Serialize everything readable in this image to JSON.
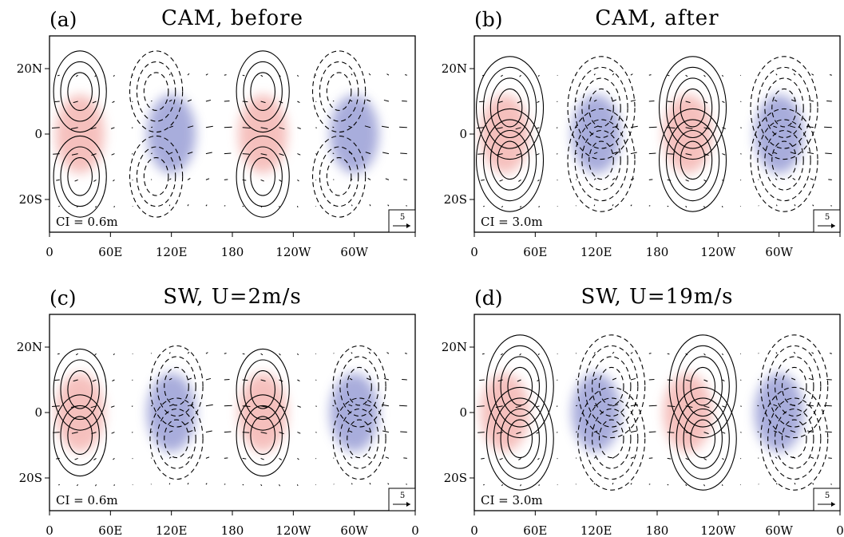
{
  "figure": {
    "panels": [
      {
        "tag": "(a)",
        "title": "CAM, before",
        "ci_label": "CI = 0.6m",
        "ref_vector": "5",
        "x_tick_labels": [
          "0",
          "60E",
          "120E",
          "180",
          "120W",
          "60W",
          ""
        ],
        "y_tick_labels": [
          "20N",
          "0",
          "20S"
        ]
      },
      {
        "tag": "(b)",
        "title": "CAM, after",
        "ci_label": "CI = 3.0m",
        "ref_vector": "5",
        "x_tick_labels": [
          "0",
          "60E",
          "120E",
          "180",
          "120W",
          "60W",
          ""
        ],
        "y_tick_labels": [
          "20N",
          "0",
          "20S"
        ]
      },
      {
        "tag": "(c)",
        "title": "SW, U=2m/s",
        "ci_label": "CI = 0.6m",
        "ref_vector": "5",
        "x_tick_labels": [
          "0",
          "60E",
          "120E",
          "180",
          "120W",
          "60W",
          "0"
        ],
        "y_tick_labels": [
          "20N",
          "0",
          "20S"
        ]
      },
      {
        "tag": "(d)",
        "title": "SW, U=19m/s",
        "ci_label": "CI = 3.0m",
        "ref_vector": "5",
        "x_tick_labels": [
          "0",
          "60E",
          "120E",
          "180",
          "120W",
          "60W",
          "0"
        ],
        "y_tick_labels": [
          "20N",
          "0",
          "20S"
        ]
      }
    ]
  },
  "chart_data": [
    {
      "type": "heatmap",
      "panel": "a",
      "title": "CAM, before",
      "xlim": [
        0,
        360
      ],
      "ylim": [
        -30,
        30
      ],
      "heating_positive_centers_lon": [
        30,
        210
      ],
      "heating_negative_centers_lon": [
        120,
        300
      ],
      "heating_center_lat": 0,
      "contour_centers_positive": [
        [
          30,
          13
        ],
        [
          30,
          -13
        ],
        [
          210,
          13
        ],
        [
          210,
          -13
        ]
      ],
      "contour_centers_negative": [
        [
          105,
          13
        ],
        [
          105,
          -13
        ],
        [
          285,
          13
        ],
        [
          285,
          -13
        ]
      ],
      "contour_levels": 3,
      "contour_interval_m": 0.6,
      "reference_vector_mps": 5,
      "colors": {
        "positive": "#f4b6b2",
        "negative": "#9a9fd6"
      }
    },
    {
      "type": "heatmap",
      "panel": "b",
      "title": "CAM, after",
      "xlim": [
        0,
        360
      ],
      "ylim": [
        -30,
        30
      ],
      "heating_positive_centers_lon": [
        30,
        210
      ],
      "heating_negative_centers_lon": [
        120,
        300
      ],
      "heating_center_lat": 0,
      "contour_centers_positive": [
        [
          35,
          8
        ],
        [
          35,
          -8
        ],
        [
          215,
          8
        ],
        [
          215,
          -8
        ]
      ],
      "contour_centers_negative": [
        [
          125,
          8
        ],
        [
          125,
          -8
        ],
        [
          305,
          8
        ],
        [
          305,
          -8
        ]
      ],
      "contour_levels": 4,
      "contour_interval_m": 3.0,
      "reference_vector_mps": 5,
      "colors": {
        "positive": "#f4b6b2",
        "negative": "#9a9fd6"
      }
    },
    {
      "type": "heatmap",
      "panel": "c",
      "title": "SW, U=2m/s",
      "xlim": [
        0,
        360
      ],
      "ylim": [
        -30,
        30
      ],
      "heating_positive_centers_lon": [
        30,
        210
      ],
      "heating_negative_centers_lon": [
        120,
        300
      ],
      "heating_center_lat": 0,
      "contour_centers_positive": [
        [
          30,
          7
        ],
        [
          30,
          -7
        ],
        [
          210,
          7
        ],
        [
          210,
          -7
        ]
      ],
      "contour_centers_negative": [
        [
          125,
          8
        ],
        [
          125,
          -8
        ],
        [
          305,
          8
        ],
        [
          305,
          -8
        ]
      ],
      "contour_levels": 3,
      "contour_interval_m": 0.6,
      "reference_vector_mps": 5,
      "colors": {
        "positive": "#f4b6b2",
        "negative": "#9a9fd6"
      }
    },
    {
      "type": "heatmap",
      "panel": "d",
      "title": "SW, U=19m/s",
      "xlim": [
        0,
        360
      ],
      "ylim": [
        -30,
        30
      ],
      "heating_positive_centers_lon": [
        30,
        210
      ],
      "heating_negative_centers_lon": [
        120,
        300
      ],
      "heating_center_lat": 0,
      "contour_centers_positive": [
        [
          45,
          8
        ],
        [
          45,
          -8
        ],
        [
          225,
          8
        ],
        [
          225,
          -8
        ]
      ],
      "contour_centers_negative": [
        [
          135,
          8
        ],
        [
          135,
          -8
        ],
        [
          315,
          8
        ],
        [
          315,
          -8
        ]
      ],
      "contour_levels": 4,
      "contour_interval_m": 3.0,
      "reference_vector_mps": 5,
      "colors": {
        "positive": "#f4b6b2",
        "negative": "#9a9fd6"
      }
    }
  ]
}
